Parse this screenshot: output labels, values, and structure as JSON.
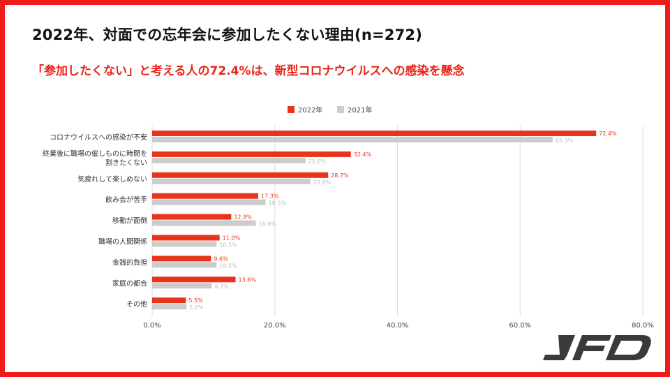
{
  "header": {
    "title": "2022年、対面での忘年会に参加したくない理由(n=272)",
    "subtitle": "「参加したくない」と考える人の72.4%は、新型コロナウイルスへの感染を懸念"
  },
  "brand": {
    "logo_text": "JFD"
  },
  "colors": {
    "frame": "#ee1c1c",
    "series_2022": "#e8341c",
    "series_2021": "#cccccc",
    "label_2022": "#e8341c",
    "label_2021": "#bbbbbb",
    "grid": "#dddddd"
  },
  "chart_data": {
    "type": "bar",
    "orientation": "horizontal",
    "categories": [
      "コロナウイルスへの感染が不安",
      "終業後に職場の催しものに時間を割きたくない",
      "気疲れして楽しめない",
      "飲み会が苦手",
      "移動が面倒",
      "職場の人間関係",
      "金銭的負担",
      "家庭の都合",
      "その他"
    ],
    "category_lines": [
      [
        "コロナウイルスへの感染が不安"
      ],
      [
        "終業後に職場の催しものに時間を",
        "割きたくない"
      ],
      [
        "気疲れして楽しめない"
      ],
      [
        "飲み会が苦手"
      ],
      [
        "移動が面倒"
      ],
      [
        "職場の人間関係"
      ],
      [
        "金銭的負担"
      ],
      [
        "家庭の都合"
      ],
      [
        "その他"
      ]
    ],
    "series": [
      {
        "name": "2022年",
        "values": [
          72.4,
          32.4,
          28.7,
          17.3,
          12.9,
          11.0,
          9.6,
          13.6,
          5.5
        ],
        "labels": [
          "72.4%",
          "32.4%",
          "28.7%",
          "17.3%",
          "12.9%",
          "11.0%",
          "9.6%",
          "13.6%",
          "5.5%"
        ]
      },
      {
        "name": "2021年",
        "values": [
          65.3,
          25.0,
          25.8,
          18.5,
          16.9,
          10.5,
          10.5,
          9.7,
          5.6
        ],
        "labels": [
          "65.3%",
          "25.0%",
          "25.8%",
          "18.5%",
          "16.9%",
          "10.5%",
          "10.5%",
          "9.7%",
          "5.6%"
        ]
      }
    ],
    "x_ticks": [
      "0.0%",
      "20.0%",
      "40.0%",
      "60.0%",
      "80.0%"
    ],
    "xlim": [
      0,
      80
    ],
    "grid": true,
    "legend_position": "top-center"
  }
}
